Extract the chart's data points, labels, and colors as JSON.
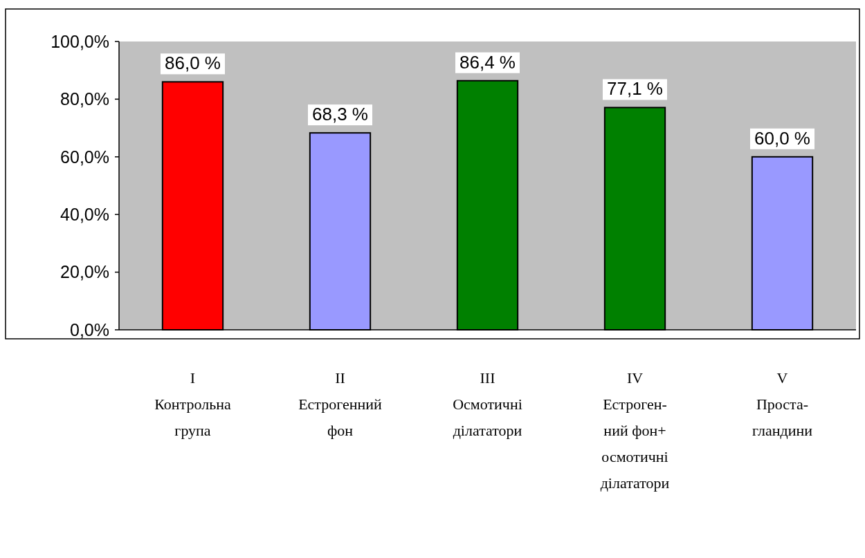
{
  "chart_data": {
    "type": "bar",
    "categories": [
      "I\nКонтрольна\nгрупа",
      "II\nЕстрогенний\nфон",
      "III\nОсмотичні\nділататори",
      "IV\nЕстроген-\nний фон+\nосмотичні\nділататори",
      "V\nПроста-\nгландини"
    ],
    "values": [
      86.0,
      68.3,
      86.4,
      77.1,
      60.0
    ],
    "colors": [
      "#ff0000",
      "#9999ff",
      "#008000",
      "#008000",
      "#9999ff"
    ],
    "value_labels": [
      "86,0 %",
      "68,3 %",
      "86,4 %",
      "77,1 %",
      "60,0 %"
    ],
    "ylim": [
      0,
      100
    ],
    "yticks": [
      {
        "value": 0,
        "label": "0,0%"
      },
      {
        "value": 20,
        "label": "20,0%"
      },
      {
        "value": 40,
        "label": "40,0%"
      },
      {
        "value": 60,
        "label": "60,0%"
      },
      {
        "value": 80,
        "label": "80,0%"
      },
      {
        "value": 100,
        "label": "100,0%"
      }
    ],
    "grid": false
  }
}
